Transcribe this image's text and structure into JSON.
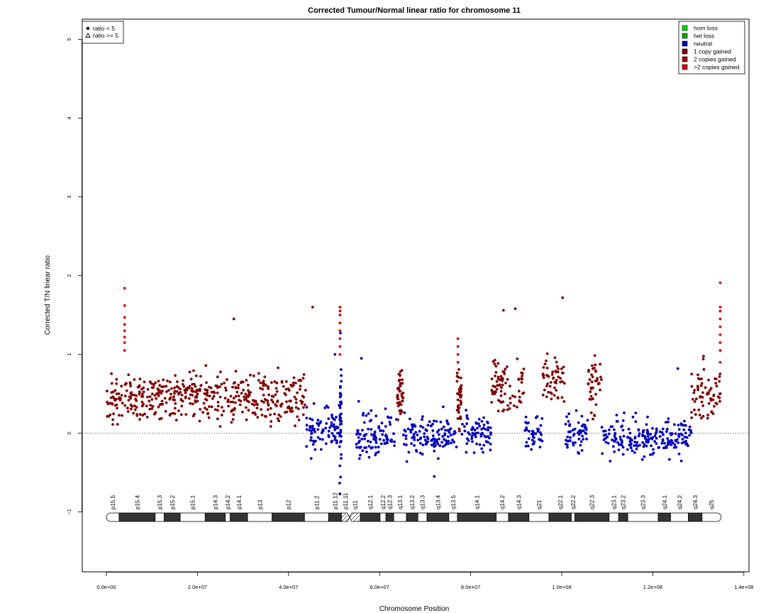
{
  "chart_data": {
    "type": "scatter",
    "title": "Corrected Tumour/Normal linear ratio for chromosome  11",
    "xlabel": "Chromosome Position",
    "ylabel": "Corrected T/N linear ratio",
    "xlim": [
      -5000000,
      140000000
    ],
    "ylim": [
      -1.8,
      5.3
    ],
    "x_ticks": [
      0,
      20000000,
      40000000,
      60000000,
      80000000,
      100000000,
      120000000,
      140000000
    ],
    "x_tick_labels": [
      "0.0e+00",
      "2.0e+07",
      "4.0e+07",
      "6.0e+07",
      "8.0e+07",
      "1.0e+08",
      "1.2e+08",
      "1.4e+08"
    ],
    "y_ticks": [
      -1,
      0,
      1,
      2,
      3,
      4,
      5
    ],
    "y_tick_labels": [
      "−1",
      "0",
      "1",
      "2",
      "3",
      "4",
      "5"
    ],
    "reference_line_y": 0,
    "shape_legend": {
      "placement": "top-left",
      "items": [
        {
          "label": "ratio < 5",
          "symbol": "filled-circle"
        },
        {
          "label": "ratio >= 5",
          "symbol": "open-triangle"
        }
      ]
    },
    "legend": {
      "placement": "top-right",
      "items": [
        {
          "label": "hom loss",
          "color": "#00dd00"
        },
        {
          "label": "het loss",
          "color": "#00aa00"
        },
        {
          "label": "neutral",
          "color": "#0000bb"
        },
        {
          "label": "1 copy gained",
          "color": "#800000"
        },
        {
          "label": "2 copies gained",
          "color": "#aa0000"
        },
        {
          "label": ">2 copies gained",
          "color": "#dd0000"
        }
      ]
    },
    "segments": [
      {
        "start": 0,
        "end": 43800000,
        "state": "1 copy gained",
        "center": 0.45,
        "spread": 0.36,
        "color": "#800000"
      },
      {
        "start": 43800000,
        "end": 51200000,
        "state": "neutral",
        "center": 0.05,
        "spread": 0.32,
        "color": "#0000bb"
      },
      {
        "start": 51200000,
        "end": 51600000,
        "state": "neutral",
        "center": 0.2,
        "spread": 0.9,
        "color": "#0000bb"
      },
      {
        "start": 54900000,
        "end": 63800000,
        "state": "neutral",
        "center": 0.0,
        "spread": 0.33,
        "color": "#0000bb"
      },
      {
        "start": 63800000,
        "end": 65200000,
        "state": "1 copy gained",
        "center": 0.5,
        "spread": 0.4,
        "color": "#800000"
      },
      {
        "start": 65200000,
        "end": 77000000,
        "state": "neutral",
        "center": -0.05,
        "spread": 0.3,
        "color": "#0000bb"
      },
      {
        "start": 77000000,
        "end": 78000000,
        "state": "1 copy gained",
        "center": 0.45,
        "spread": 0.4,
        "color": "#800000"
      },
      {
        "start": 78000000,
        "end": 84500000,
        "state": "neutral",
        "center": 0.0,
        "spread": 0.3,
        "color": "#0000bb"
      },
      {
        "start": 84500000,
        "end": 91800000,
        "state": "1 copy gained",
        "center": 0.6,
        "spread": 0.4,
        "color": "#800000"
      },
      {
        "start": 91800000,
        "end": 95800000,
        "state": "neutral",
        "center": 0.0,
        "spread": 0.3,
        "color": "#0000bb"
      },
      {
        "start": 95800000,
        "end": 100800000,
        "state": "1 copy gained",
        "center": 0.65,
        "spread": 0.4,
        "color": "#800000"
      },
      {
        "start": 100800000,
        "end": 105800000,
        "state": "neutral",
        "center": 0.0,
        "spread": 0.3,
        "color": "#0000bb"
      },
      {
        "start": 105800000,
        "end": 108800000,
        "state": "1 copy gained",
        "center": 0.6,
        "spread": 0.4,
        "color": "#800000"
      },
      {
        "start": 108800000,
        "end": 128500000,
        "state": "neutral",
        "center": -0.05,
        "spread": 0.3,
        "color": "#0000bb"
      },
      {
        "start": 128500000,
        "end": 135000000,
        "state": "1 copy gained",
        "center": 0.5,
        "spread": 0.4,
        "color": "#800000"
      }
    ],
    "red_spikes": [
      {
        "x": 4000000,
        "values": [
          1.84,
          1.62,
          1.47,
          1.38,
          1.3,
          1.22,
          1.15,
          1.05
        ]
      },
      {
        "x": 51300000,
        "values": [
          1.6,
          1.55,
          1.5,
          1.4,
          1.3,
          1.2,
          1.1,
          1.0
        ]
      },
      {
        "x": 77200000,
        "values": [
          1.2,
          1.1,
          1.0,
          0.9
        ]
      },
      {
        "x": 134800000,
        "values": [
          1.91,
          1.6,
          1.55,
          1.45,
          1.35,
          1.25,
          1.15,
          1.05,
          0.9
        ]
      }
    ],
    "notable_points": [
      {
        "x": 51300000,
        "y": -0.77,
        "color": "#0000bb"
      },
      {
        "x": 50200000,
        "y": 1.0,
        "color": "#0000bb"
      },
      {
        "x": 51400000,
        "y": 1.27,
        "color": "#0000bb"
      },
      {
        "x": 100200000,
        "y": 1.72,
        "color": "#800000"
      },
      {
        "x": 87200000,
        "y": 1.56,
        "color": "#800000"
      },
      {
        "x": 89800000,
        "y": 1.58,
        "color": "#800000"
      },
      {
        "x": 45300000,
        "y": 1.6,
        "color": "#800000"
      },
      {
        "x": 28000000,
        "y": 1.45,
        "color": "#800000"
      },
      {
        "x": 56000000,
        "y": 0.95,
        "color": "#0000bb"
      },
      {
        "x": 72000000,
        "y": -0.55,
        "color": "#0000bb"
      },
      {
        "x": 125500000,
        "y": 0.82,
        "color": "#0000bb"
      }
    ],
    "ideogram": {
      "centromere": 53400000,
      "bands": [
        {
          "name": "p15.5",
          "start": 0,
          "end": 2800000,
          "stain": "white"
        },
        {
          "name": "p15.4",
          "start": 2800000,
          "end": 10700000,
          "stain": "dark"
        },
        {
          "name": "p15.3",
          "start": 10700000,
          "end": 12700000,
          "stain": "white"
        },
        {
          "name": "p15.2",
          "start": 12700000,
          "end": 16200000,
          "stain": "dark"
        },
        {
          "name": "p15.1",
          "start": 16200000,
          "end": 21700000,
          "stain": "white"
        },
        {
          "name": "p14.3",
          "start": 21700000,
          "end": 26100000,
          "stain": "dark"
        },
        {
          "name": "p14.2",
          "start": 26100000,
          "end": 27200000,
          "stain": "white"
        },
        {
          "name": "p14.1",
          "start": 27200000,
          "end": 31000000,
          "stain": "dark"
        },
        {
          "name": "p13",
          "start": 31000000,
          "end": 36400000,
          "stain": "white"
        },
        {
          "name": "p12",
          "start": 36400000,
          "end": 43500000,
          "stain": "dark"
        },
        {
          "name": "p11.2",
          "start": 43500000,
          "end": 48800000,
          "stain": "white"
        },
        {
          "name": "p11.12",
          "start": 48800000,
          "end": 51600000,
          "stain": "dark"
        },
        {
          "name": "p11.11",
          "start": 51600000,
          "end": 53400000,
          "stain": "gvar"
        },
        {
          "name": "q11",
          "start": 53400000,
          "end": 55800000,
          "stain": "hatch"
        },
        {
          "name": "q12.1",
          "start": 55800000,
          "end": 60100000,
          "stain": "dark"
        },
        {
          "name": "q12.2",
          "start": 60100000,
          "end": 61400000,
          "stain": "white"
        },
        {
          "name": "q12.3",
          "start": 61400000,
          "end": 63100000,
          "stain": "dark"
        },
        {
          "name": "q13.1",
          "start": 63100000,
          "end": 65900000,
          "stain": "white"
        },
        {
          "name": "q13.2",
          "start": 65900000,
          "end": 68400000,
          "stain": "dark"
        },
        {
          "name": "q13.3",
          "start": 68400000,
          "end": 70400000,
          "stain": "white"
        },
        {
          "name": "q13.4",
          "start": 70400000,
          "end": 75200000,
          "stain": "dark"
        },
        {
          "name": "q13.5",
          "start": 75200000,
          "end": 77100000,
          "stain": "white"
        },
        {
          "name": "q14.1",
          "start": 77100000,
          "end": 85600000,
          "stain": "dark"
        },
        {
          "name": "q14.2",
          "start": 85600000,
          "end": 88300000,
          "stain": "white"
        },
        {
          "name": "q14.3",
          "start": 88300000,
          "end": 92800000,
          "stain": "dark"
        },
        {
          "name": "q21",
          "start": 92800000,
          "end": 97200000,
          "stain": "white"
        },
        {
          "name": "q22.1",
          "start": 97200000,
          "end": 102100000,
          "stain": "dark"
        },
        {
          "name": "q22.2",
          "start": 102100000,
          "end": 102900000,
          "stain": "white"
        },
        {
          "name": "q22.3",
          "start": 102900000,
          "end": 110400000,
          "stain": "dark"
        },
        {
          "name": "q23.1",
          "start": 110400000,
          "end": 112500000,
          "stain": "white"
        },
        {
          "name": "q23.2",
          "start": 112500000,
          "end": 114500000,
          "stain": "dark"
        },
        {
          "name": "q23.3",
          "start": 114500000,
          "end": 121200000,
          "stain": "white"
        },
        {
          "name": "q24.1",
          "start": 121200000,
          "end": 123900000,
          "stain": "dark"
        },
        {
          "name": "q24.2",
          "start": 123900000,
          "end": 127800000,
          "stain": "white"
        },
        {
          "name": "q24.3",
          "start": 127800000,
          "end": 130800000,
          "stain": "dark"
        },
        {
          "name": "q25",
          "start": 130800000,
          "end": 135006516,
          "stain": "white"
        }
      ]
    }
  }
}
